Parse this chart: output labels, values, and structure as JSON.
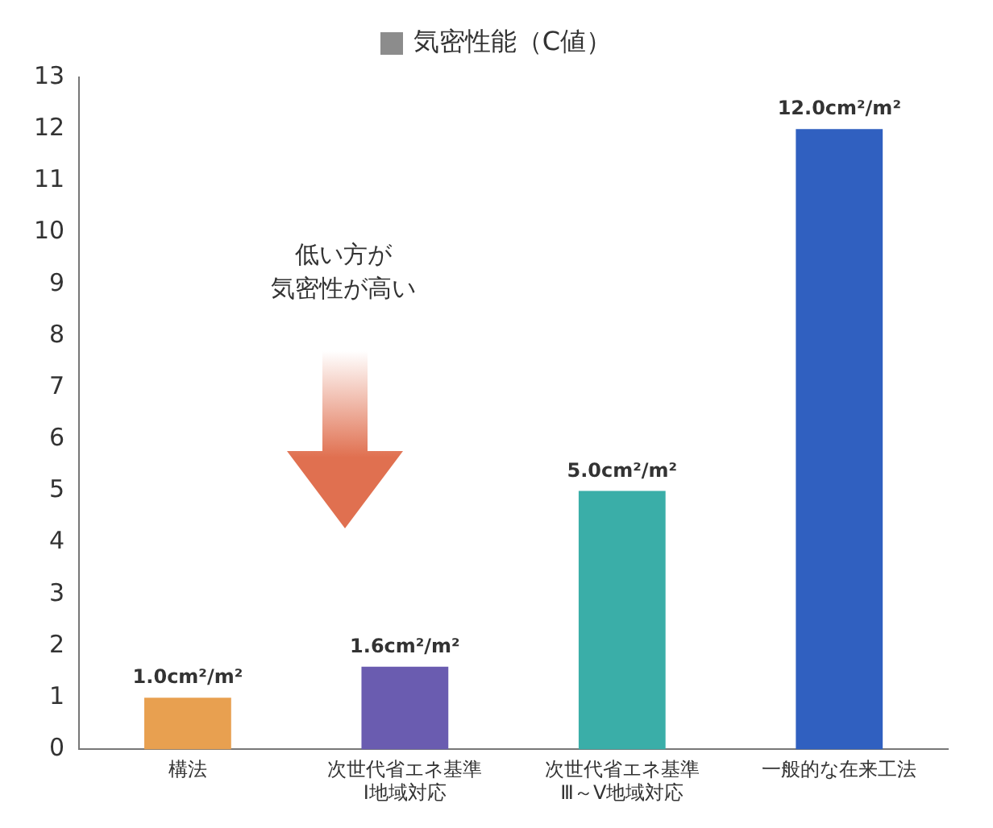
{
  "chart_data": {
    "type": "bar",
    "categories": [
      "構法",
      "次世代省エネ基準Ⅰ地域対応",
      "次世代省エネ基準Ⅲ～Ⅴ地域対応",
      "一般的な在来工法"
    ],
    "series": [
      {
        "name": "気密性能（C値）",
        "color": "#8c8c8c",
        "colors": [
          "#e8a050",
          "#6a5cb0",
          "#3aaea8",
          "#3060c0"
        ],
        "values": [
          1.0,
          1.6,
          5.0,
          12.0
        ],
        "value_labels": [
          "1.0cm²/m²",
          "1.6cm²/m²",
          "5.0cm²/m²",
          "12.0cm²/m²"
        ]
      }
    ],
    "ylim": [
      0,
      13
    ],
    "yticks": [
      0,
      1,
      2,
      3,
      4,
      5,
      6,
      7,
      8,
      9,
      10,
      11,
      12,
      13
    ],
    "grid": false,
    "legend": "top",
    "annotations": [
      "低い方が気密性が高い"
    ]
  }
}
